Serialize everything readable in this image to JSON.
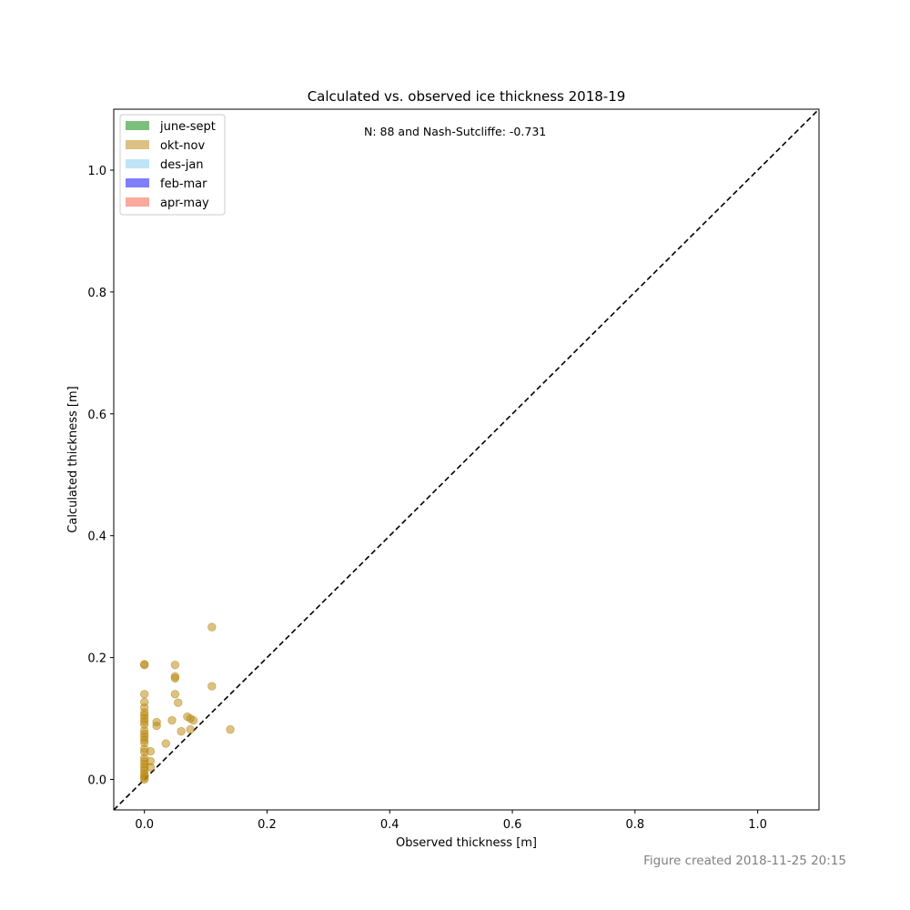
{
  "chart_data": {
    "type": "scatter",
    "title": "Calculated vs. observed ice thickness 2018-19",
    "xlabel": "Observed thickness [m]",
    "ylabel": "Calculated thickness [m]",
    "xlim": [
      -0.05,
      1.1
    ],
    "ylim": [
      -0.05,
      1.1
    ],
    "xticks": [
      "0.0",
      "0.2",
      "0.4",
      "0.6",
      "0.8",
      "1.0"
    ],
    "yticks": [
      "0.0",
      "0.2",
      "0.4",
      "0.6",
      "0.8",
      "1.0"
    ],
    "annotation": "N: 88  and  Nash-Sutcliffe: -0.731",
    "reference_line": "1:1 dashed black",
    "grid": false,
    "legend_placement": "upper-left",
    "legend": [
      {
        "label": "june-sept",
        "color": "#7cbf7c"
      },
      {
        "label": "okt-nov",
        "color": "#dcc183"
      },
      {
        "label": "des-jan",
        "color": "#bfe4f7"
      },
      {
        "label": "feb-mar",
        "color": "#7f7ffb"
      },
      {
        "label": "apr-may",
        "color": "#f9aa9b"
      }
    ],
    "series": [
      {
        "name": "okt-nov",
        "color": "#b8860b",
        "points": [
          [
            0.0,
            0.0
          ],
          [
            0.0,
            0.003
          ],
          [
            0.0,
            0.006
          ],
          [
            0.0,
            0.01
          ],
          [
            0.0,
            0.015
          ],
          [
            0.0,
            0.02
          ],
          [
            0.0,
            0.025
          ],
          [
            0.0,
            0.03
          ],
          [
            0.0,
            0.035
          ],
          [
            0.0,
            0.045
          ],
          [
            0.0,
            0.05
          ],
          [
            0.0,
            0.06
          ],
          [
            0.0,
            0.065
          ],
          [
            0.0,
            0.07
          ],
          [
            0.0,
            0.075
          ],
          [
            0.0,
            0.08
          ],
          [
            0.0,
            0.09
          ],
          [
            0.0,
            0.095
          ],
          [
            0.0,
            0.1
          ],
          [
            0.0,
            0.105
          ],
          [
            0.0,
            0.11
          ],
          [
            0.0,
            0.118
          ],
          [
            0.0,
            0.127
          ],
          [
            0.0,
            0.14
          ],
          [
            0.0,
            0.188
          ],
          [
            0.0,
            0.189
          ],
          [
            0.01,
            0.02
          ],
          [
            0.01,
            0.03
          ],
          [
            0.01,
            0.046
          ],
          [
            0.02,
            0.088
          ],
          [
            0.02,
            0.094
          ],
          [
            0.035,
            0.059
          ],
          [
            0.045,
            0.097
          ],
          [
            0.05,
            0.14
          ],
          [
            0.05,
            0.166
          ],
          [
            0.05,
            0.169
          ],
          [
            0.05,
            0.188
          ],
          [
            0.055,
            0.126
          ],
          [
            0.06,
            0.079
          ],
          [
            0.07,
            0.103
          ],
          [
            0.075,
            0.082
          ],
          [
            0.075,
            0.1
          ],
          [
            0.08,
            0.097
          ],
          [
            0.11,
            0.153
          ],
          [
            0.11,
            0.25
          ],
          [
            0.14,
            0.082
          ]
        ]
      }
    ]
  },
  "footer": "Figure created 2018-11-25 20:15"
}
